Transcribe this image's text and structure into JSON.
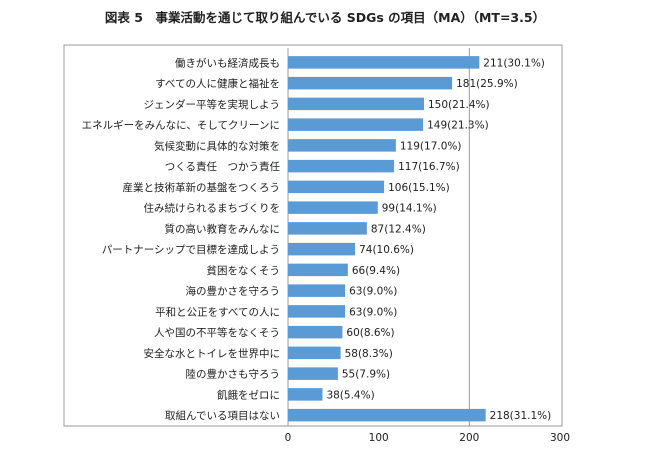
{
  "chart_data": {
    "type": "bar",
    "orientation": "horizontal",
    "title": "図表 5　事業活動を通じて取り組んでいる SDGs の項目（MA）（MT=3.5）",
    "xlabel": "",
    "ylabel": "",
    "xlim": [
      0,
      300
    ],
    "xticks": [
      0,
      100,
      200,
      300
    ],
    "grid": "vertical at 200",
    "categories": [
      "働きがいも経済成長も",
      "すべての人に健康と福祉を",
      "ジェンダー平等を実現しよう",
      "エネルギーをみんなに、そしてクリーンに",
      "気候変動に具体的な対策を",
      "つくる責任　つかう責任",
      "産業と技術革新の基盤をつくろう",
      "住み続けられるまちづくりを",
      "質の高い教育をみんなに",
      "パートナーシップで目標を達成しよう",
      "貧困をなくそう",
      "海の豊かさを守ろう",
      "平和と公正をすべての人に",
      "人や国の不平等をなくそう",
      "安全な水とトイレを世界中に",
      "陸の豊かさも守ろう",
      "飢餓をゼロに",
      "取組んでいる項目はない"
    ],
    "values": [
      211,
      181,
      150,
      149,
      119,
      117,
      106,
      99,
      87,
      74,
      66,
      63,
      63,
      60,
      58,
      55,
      38,
      218
    ],
    "labels": [
      "211(30.1%)",
      "181(25.9%)",
      "150(21.4%)",
      "149(21.3%)",
      "119(17.0%)",
      "117(16.7%)",
      "106(15.1%)",
      "99(14.1%)",
      "87(12.4%)",
      "74(10.6%)",
      "66(9.4%)",
      "63(9.0%)",
      "63(9.0%)",
      "60(8.6%)",
      "58(8.3%)",
      "55(7.9%)",
      "38(5.4%)",
      "218(31.1%)"
    ],
    "bar_color": "#5b9bd5",
    "frame_color": "#9a9a9a"
  }
}
